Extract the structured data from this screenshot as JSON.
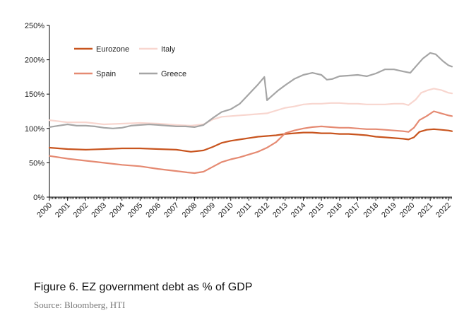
{
  "caption": {
    "title": "Figure 6. EZ government debt as % of GDP",
    "source": "Source: Bloomberg, HTI"
  },
  "chart_data": {
    "type": "line",
    "title": "",
    "xlabel": "",
    "ylabel": "",
    "ylim": [
      0,
      250
    ],
    "yticks": [
      0,
      50,
      100,
      150,
      200,
      250
    ],
    "ytick_labels": [
      "0%",
      "50%",
      "100%",
      "150%",
      "200%",
      "250%"
    ],
    "xlim": [
      2000,
      2022.2
    ],
    "xtick_labels": [
      "2000",
      "2001",
      "2002",
      "2003",
      "2004",
      "2005",
      "2006",
      "2007",
      "2008",
      "2009",
      "2010",
      "2011",
      "2012",
      "2013",
      "2014",
      "2015",
      "2016",
      "2017",
      "2018",
      "2019",
      "2020",
      "2021",
      "2022"
    ],
    "grid": false,
    "legend": "top-left, inside",
    "series": [
      {
        "name": "Eurozone",
        "color": "#c8541e",
        "points": [
          [
            2000,
            72
          ],
          [
            2001,
            70
          ],
          [
            2002,
            69
          ],
          [
            2003,
            70
          ],
          [
            2004,
            71
          ],
          [
            2005,
            71
          ],
          [
            2006,
            70
          ],
          [
            2007,
            69
          ],
          [
            2007.8,
            66
          ],
          [
            2008.5,
            68
          ],
          [
            2009,
            73
          ],
          [
            2009.5,
            79
          ],
          [
            2010,
            82
          ],
          [
            2010.5,
            84
          ],
          [
            2011,
            86
          ],
          [
            2011.5,
            88
          ],
          [
            2012,
            89
          ],
          [
            2012.5,
            90
          ],
          [
            2013,
            92
          ],
          [
            2013.5,
            93
          ],
          [
            2014,
            94
          ],
          [
            2014.5,
            94
          ],
          [
            2015,
            93
          ],
          [
            2015.5,
            93
          ],
          [
            2016,
            92
          ],
          [
            2016.5,
            92
          ],
          [
            2017,
            91
          ],
          [
            2017.5,
            90
          ],
          [
            2018,
            88
          ],
          [
            2018.5,
            87
          ],
          [
            2019,
            86
          ],
          [
            2019.5,
            85
          ],
          [
            2019.8,
            84
          ],
          [
            2020.1,
            87
          ],
          [
            2020.4,
            95
          ],
          [
            2020.8,
            98
          ],
          [
            2021.2,
            99
          ],
          [
            2021.6,
            98
          ],
          [
            2022,
            97
          ],
          [
            2022.2,
            96
          ]
        ]
      },
      {
        "name": "Italy",
        "color": "#f8d6cf",
        "points": [
          [
            2000,
            112
          ],
          [
            2001,
            109
          ],
          [
            2002,
            109
          ],
          [
            2003,
            106
          ],
          [
            2004,
            107
          ],
          [
            2005,
            108
          ],
          [
            2006,
            107
          ],
          [
            2007,
            105
          ],
          [
            2007.8,
            104
          ],
          [
            2008.5,
            106
          ],
          [
            2009,
            113
          ],
          [
            2009.5,
            117
          ],
          [
            2010,
            118
          ],
          [
            2010.5,
            119
          ],
          [
            2011,
            120
          ],
          [
            2011.5,
            121
          ],
          [
            2012,
            122
          ],
          [
            2012.5,
            126
          ],
          [
            2013,
            130
          ],
          [
            2013.5,
            132
          ],
          [
            2014,
            135
          ],
          [
            2014.5,
            136
          ],
          [
            2015,
            136
          ],
          [
            2015.5,
            137
          ],
          [
            2016,
            137
          ],
          [
            2016.5,
            136
          ],
          [
            2017,
            136
          ],
          [
            2017.5,
            135
          ],
          [
            2018,
            135
          ],
          [
            2018.5,
            135
          ],
          [
            2019,
            136
          ],
          [
            2019.5,
            136
          ],
          [
            2019.8,
            134
          ],
          [
            2020.2,
            142
          ],
          [
            2020.5,
            152
          ],
          [
            2020.9,
            156
          ],
          [
            2021.2,
            158
          ],
          [
            2021.6,
            156
          ],
          [
            2022,
            152
          ],
          [
            2022.2,
            151
          ]
        ]
      },
      {
        "name": "Spain",
        "color": "#e58a72",
        "points": [
          [
            2000,
            60
          ],
          [
            2000.5,
            58
          ],
          [
            2001,
            56
          ],
          [
            2002,
            53
          ],
          [
            2003,
            50
          ],
          [
            2004,
            47
          ],
          [
            2005,
            45
          ],
          [
            2006,
            41
          ],
          [
            2007,
            38
          ],
          [
            2007.6,
            36
          ],
          [
            2008,
            35
          ],
          [
            2008.5,
            37
          ],
          [
            2009,
            44
          ],
          [
            2009.5,
            51
          ],
          [
            2010,
            55
          ],
          [
            2010.5,
            58
          ],
          [
            2011,
            62
          ],
          [
            2011.5,
            66
          ],
          [
            2012,
            72
          ],
          [
            2012.5,
            80
          ],
          [
            2013,
            93
          ],
          [
            2013.5,
            97
          ],
          [
            2014,
            100
          ],
          [
            2014.5,
            102
          ],
          [
            2015,
            103
          ],
          [
            2015.5,
            102
          ],
          [
            2016,
            101
          ],
          [
            2016.5,
            101
          ],
          [
            2017,
            100
          ],
          [
            2017.5,
            99
          ],
          [
            2018,
            99
          ],
          [
            2018.5,
            98
          ],
          [
            2019,
            97
          ],
          [
            2019.5,
            96
          ],
          [
            2019.8,
            95
          ],
          [
            2020.1,
            101
          ],
          [
            2020.4,
            112
          ],
          [
            2020.8,
            118
          ],
          [
            2021.2,
            125
          ],
          [
            2021.6,
            122
          ],
          [
            2022,
            119
          ],
          [
            2022.2,
            118
          ]
        ]
      },
      {
        "name": "Greece",
        "color": "#a5a5a5",
        "points": [
          [
            2000,
            102
          ],
          [
            2000.5,
            104
          ],
          [
            2001,
            106
          ],
          [
            2001.5,
            104
          ],
          [
            2002,
            104
          ],
          [
            2002.5,
            103
          ],
          [
            2003,
            101
          ],
          [
            2003.5,
            100
          ],
          [
            2004,
            101
          ],
          [
            2004.5,
            104
          ],
          [
            2005,
            105
          ],
          [
            2005.5,
            106
          ],
          [
            2006,
            105
          ],
          [
            2006.5,
            104
          ],
          [
            2007,
            103
          ],
          [
            2007.5,
            103
          ],
          [
            2008,
            102
          ],
          [
            2008.5,
            105
          ],
          [
            2009,
            115
          ],
          [
            2009.5,
            124
          ],
          [
            2010,
            128
          ],
          [
            2010.5,
            136
          ],
          [
            2011,
            150
          ],
          [
            2011.5,
            164
          ],
          [
            2011.85,
            175
          ],
          [
            2012,
            141
          ],
          [
            2012.3,
            148
          ],
          [
            2012.6,
            155
          ],
          [
            2013,
            163
          ],
          [
            2013.5,
            172
          ],
          [
            2014,
            178
          ],
          [
            2014.5,
            181
          ],
          [
            2015,
            178
          ],
          [
            2015.3,
            171
          ],
          [
            2015.6,
            172
          ],
          [
            2016,
            176
          ],
          [
            2016.5,
            177
          ],
          [
            2017,
            178
          ],
          [
            2017.5,
            176
          ],
          [
            2018,
            180
          ],
          [
            2018.5,
            186
          ],
          [
            2019,
            186
          ],
          [
            2019.5,
            183
          ],
          [
            2019.9,
            181
          ],
          [
            2020.2,
            190
          ],
          [
            2020.6,
            202
          ],
          [
            2021,
            210
          ],
          [
            2021.3,
            208
          ],
          [
            2021.7,
            198
          ],
          [
            2022,
            192
          ],
          [
            2022.2,
            190
          ]
        ]
      }
    ]
  }
}
